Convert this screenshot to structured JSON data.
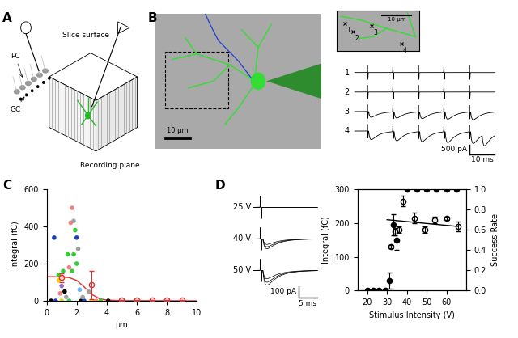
{
  "panel_labels": [
    "A",
    "B",
    "C",
    "D"
  ],
  "schematic": {
    "slice_surface": "Slice surface",
    "gc": "GC",
    "pc": "PC",
    "recording_plane": "Recording plane"
  },
  "image": {
    "scale_bar": "10 µm",
    "inset_scale_bar": "10 µm",
    "sites": [
      "1",
      "2",
      "3",
      "4"
    ]
  },
  "traces_b": {
    "rows": [
      "1",
      "2",
      "3",
      "4"
    ],
    "time_scale": "10 ms",
    "current_scale": "500 pA"
  },
  "traces_d": {
    "rows": [
      "25 V",
      "40 V",
      "50 V"
    ],
    "time_scale": "5 ms",
    "current_scale": "100 pA"
  },
  "chart_data": [
    {
      "type": "scatter",
      "xlabel": "µm",
      "ylabel": "Integral (fC)",
      "xlim": [
        0,
        10
      ],
      "ylim": [
        0,
        600
      ],
      "xticks": [
        0,
        2,
        4,
        6,
        8,
        10
      ],
      "yticks": [
        0,
        200,
        400,
        600
      ],
      "series": [
        {
          "type": "scatter",
          "x": [
            0.3,
            0.5,
            0.6,
            0.8,
            1.0,
            1.0,
            1.2,
            1.3,
            1.4,
            1.5,
            1.6,
            1.7,
            1.7,
            1.8,
            1.9,
            2.0,
            1.8,
            2.1,
            2.2,
            2.3,
            2.5,
            2.0,
            1.1,
            0.8,
            2.4,
            3.0,
            3.3,
            3.6,
            4.1,
            2.8,
            0.9,
            1.5
          ],
          "values": [
            0,
            340,
            0,
            140,
            80,
            0,
            50,
            20,
            250,
            180,
            420,
            500,
            160,
            250,
            380,
            200,
            430,
            280,
            60,
            0,
            0,
            340,
            160,
            110,
            20,
            0,
            0,
            0,
            0,
            50,
            40,
            0
          ],
          "colors": [
            "#000000",
            "#1f3fbf",
            "#1f3fbf",
            "#33cc33",
            "#9966cc",
            "#e6d200",
            "#000000",
            "#a0a0a0",
            "#33cc33",
            "#f08080",
            "#f08080",
            "#f08080",
            "#33cc33",
            "#33cc33",
            "#33cc33",
            "#33cc33",
            "#a0a0a0",
            "#a0a0a0",
            "#66b3ff",
            "#000000",
            "#1f3fbf",
            "#1f3fbf",
            "#33cc33",
            "#e6d200",
            "#a0a0a0",
            "#e6d200",
            "#f08080",
            "#33cc33",
            "#000000",
            "#a0a0a0",
            "#f08080",
            "#33cc33"
          ]
        },
        {
          "type": "scatter",
          "color": "#e03030",
          "marker": "open_circle",
          "x": [
            1,
            3,
            5,
            6,
            7,
            8,
            9
          ],
          "values": [
            125,
            85,
            3,
            3,
            3,
            3,
            3
          ],
          "errors": [
            25,
            75,
            3,
            3,
            3,
            3,
            3
          ]
        },
        {
          "type": "line",
          "color": "#e03030",
          "line_style": "solid",
          "x": [
            0,
            0.5,
            1,
            1.5,
            2,
            2.5,
            3,
            3.5,
            4,
            5,
            10
          ],
          "values": [
            130,
            130,
            129,
            125,
            110,
            75,
            35,
            12,
            4,
            1,
            0
          ]
        }
      ]
    },
    {
      "type": "scatter",
      "xlabel": "Stimulus Intensity (V)",
      "ylabel": "Integral (fC)",
      "y2label": "Success Rate",
      "xlim": [
        15,
        70
      ],
      "xticks": [
        20,
        30,
        40,
        50,
        60
      ],
      "ylim": [
        0,
        300
      ],
      "yticks": [
        0,
        100,
        200,
        300
      ],
      "y2lim": [
        0.0,
        1.0
      ],
      "y2ticks": [
        0.0,
        0.2,
        0.4,
        0.6,
        0.8,
        1.0
      ],
      "series": [
        {
          "type": "scatter",
          "color": "#000000",
          "marker": "open_circle",
          "x": [
            32,
            34,
            36,
            38,
            44,
            49,
            54,
            60,
            66
          ],
          "values": [
            130,
            175,
            180,
            265,
            215,
            180,
            210,
            215,
            190
          ],
          "errors": [
            5,
            10,
            10,
            15,
            15,
            10,
            10,
            5,
            15
          ]
        },
        {
          "type": "line",
          "color": "#000000",
          "line_style": "solid",
          "x": [
            30,
            66
          ],
          "values": [
            210,
            190
          ]
        },
        {
          "type": "scatter",
          "color": "#000000",
          "marker": "filled_circle",
          "axis": "y2",
          "x": [
            20,
            23,
            26,
            29,
            31,
            33,
            35,
            40,
            45,
            50,
            55,
            60,
            65
          ],
          "values": [
            0,
            0,
            0,
            0,
            0.1,
            0.65,
            0.5,
            1,
            1,
            1,
            1,
            1,
            1
          ],
          "errors": [
            0,
            0,
            0,
            0,
            0.08,
            0.1,
            0.1,
            0,
            0,
            0,
            0,
            0,
            0
          ]
        }
      ]
    }
  ]
}
